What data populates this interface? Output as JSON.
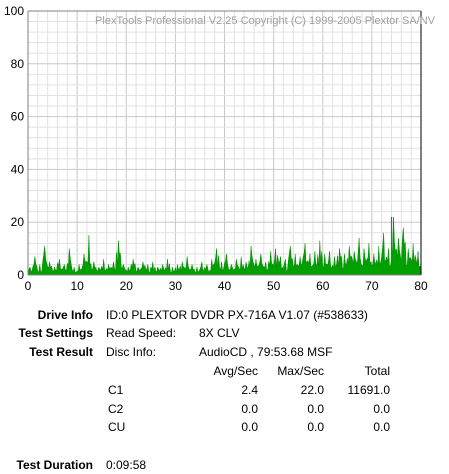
{
  "chart_data": {
    "type": "area",
    "watermark": "PlexTools Professional V2.25 Copyright (C) 1999-2005 Plextor SA/NV",
    "xlim": [
      0,
      80
    ],
    "ylim": [
      0,
      100
    ],
    "x_ticks": [
      "0",
      "10",
      "20",
      "30",
      "40",
      "50",
      "60",
      "70",
      "80"
    ],
    "y_ticks": [
      "0",
      "20",
      "40",
      "60",
      "80",
      "100"
    ],
    "grid": true,
    "series": [
      {
        "color": "#00a000",
        "x": [
          0,
          1,
          2,
          3,
          4,
          5,
          6,
          7,
          8,
          9,
          10,
          11,
          12,
          13,
          14,
          15,
          16,
          17,
          18,
          19,
          20,
          21,
          22,
          23,
          24,
          25,
          26,
          27,
          28,
          29,
          30,
          31,
          32,
          33,
          34,
          35,
          36,
          37,
          38,
          39,
          40,
          41,
          42,
          43,
          44,
          45,
          46,
          47,
          48,
          49,
          50,
          51,
          52,
          53,
          54,
          55,
          56,
          57,
          58,
          59,
          60,
          61,
          62,
          63,
          64,
          65,
          66,
          67,
          68,
          69,
          70,
          71,
          72,
          73,
          74,
          75,
          76,
          77,
          78,
          79
        ],
        "y": [
          3,
          7,
          4,
          11,
          5,
          3,
          6,
          4,
          10,
          3,
          4,
          8,
          15,
          5,
          3,
          6,
          4,
          5,
          13,
          4,
          3,
          6,
          3,
          5,
          4,
          5,
          3,
          4,
          6,
          3,
          4,
          5,
          7,
          4,
          3,
          5,
          4,
          6,
          10,
          5,
          8,
          4,
          6,
          7,
          5,
          11,
          6,
          8,
          5,
          9,
          10,
          7,
          6,
          11,
          8,
          7,
          12,
          8,
          9,
          13,
          8,
          9,
          7,
          10,
          8,
          11,
          9,
          14,
          10,
          12,
          8,
          11,
          16,
          10,
          22,
          14,
          18,
          10,
          12,
          9
        ],
        "peak_x": 74,
        "peak_y": 22
      }
    ]
  },
  "info": {
    "drive_info_label": "Drive Info",
    "drive_info_value": "ID:0 PLEXTOR DVDR PX-716A V1.07 (#538633)",
    "test_settings_label": "Test Settings",
    "read_speed_label": "Read Speed:",
    "read_speed_value": "8X CLV",
    "test_result_label": "Test Result",
    "disc_info_label": "Disc Info:",
    "disc_info_value": "AudioCD , 79:53.68 MSF",
    "test_duration_label": "Test Duration",
    "test_duration_value": "0:09:58"
  },
  "results_table": {
    "headers": [
      "Avg/Sec",
      "Max/Sec",
      "Total"
    ],
    "rows": [
      {
        "name": "C1",
        "avg": "2.4",
        "max": "22.0",
        "total": "11691.0"
      },
      {
        "name": "C2",
        "avg": "0.0",
        "max": "0.0",
        "total": "0.0"
      },
      {
        "name": "CU",
        "avg": "0.0",
        "max": "0.0",
        "total": "0.0"
      }
    ]
  }
}
